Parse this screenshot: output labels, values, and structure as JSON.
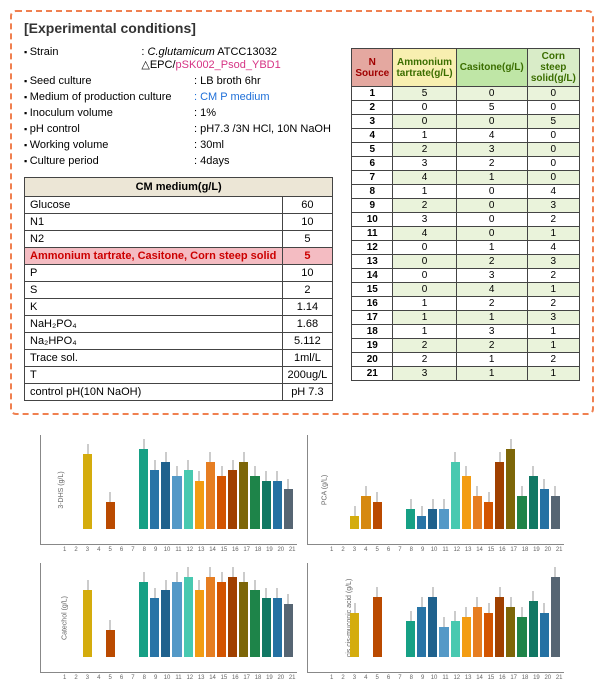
{
  "header_title": "[Experimental conditions]",
  "conditions": [
    {
      "label": "Strain",
      "value_prefix": ": ",
      "italic_part": "C.glutamicum",
      "plain_part": " ATCC13032 △EPC/",
      "pink_part": "pSK002_Psod_YBD1"
    },
    {
      "label": "Seed culture",
      "value": ": LB broth 6hr"
    },
    {
      "label": "Medium of production culture",
      "value": ": CM P medium",
      "value_class": "blue"
    },
    {
      "label": "Inoculum volume",
      "value": ": 1%"
    },
    {
      "label": "pH control",
      "value": ": pH7.3 /3N HCl, 10N NaOH"
    },
    {
      "label": "Working volume",
      "value": ": 30ml"
    },
    {
      "label": "Culture period",
      "value": ": 4days"
    }
  ],
  "cm_table": {
    "header": "CM medium(g/L)",
    "rows": [
      {
        "name": "Glucose",
        "val": "60"
      },
      {
        "name": "N1",
        "val": "10"
      },
      {
        "name": "N2",
        "val": "5"
      },
      {
        "name": "Ammonium tartrate, Casitone, Corn steep solid",
        "val": "5",
        "highlight": true
      },
      {
        "name": "P",
        "val": "10"
      },
      {
        "name": "S",
        "val": "2"
      },
      {
        "name": "K",
        "val": "1.14"
      },
      {
        "name": "NaH₂PO₄",
        "val": "1.68"
      },
      {
        "name": "Na₂HPO₄",
        "val": "5.112"
      },
      {
        "name": "Trace sol.",
        "val": "1ml/L"
      },
      {
        "name": "T",
        "val": "200ug/L"
      },
      {
        "name": "control pH(10N NaOH)",
        "val": "pH 7.3"
      }
    ]
  },
  "nsrc_table": {
    "headers": [
      "N Source",
      "Ammonium tartrate(g/L)",
      "Casitone(g/L)",
      "Corn steep solid(g/L)"
    ],
    "rows": [
      [
        "1",
        "5",
        "0",
        "0"
      ],
      [
        "2",
        "0",
        "5",
        "0"
      ],
      [
        "3",
        "0",
        "0",
        "5"
      ],
      [
        "4",
        "1",
        "4",
        "0"
      ],
      [
        "5",
        "2",
        "3",
        "0"
      ],
      [
        "6",
        "3",
        "2",
        "0"
      ],
      [
        "7",
        "4",
        "1",
        "0"
      ],
      [
        "8",
        "1",
        "0",
        "4"
      ],
      [
        "9",
        "2",
        "0",
        "3"
      ],
      [
        "10",
        "3",
        "0",
        "2"
      ],
      [
        "11",
        "4",
        "0",
        "1"
      ],
      [
        "12",
        "0",
        "1",
        "4"
      ],
      [
        "13",
        "0",
        "2",
        "3"
      ],
      [
        "14",
        "0",
        "3",
        "2"
      ],
      [
        "15",
        "0",
        "4",
        "1"
      ],
      [
        "16",
        "1",
        "2",
        "2"
      ],
      [
        "17",
        "1",
        "1",
        "3"
      ],
      [
        "18",
        "1",
        "3",
        "1"
      ],
      [
        "19",
        "2",
        "2",
        "1"
      ],
      [
        "20",
        "2",
        "1",
        "2"
      ],
      [
        "21",
        "3",
        "1",
        "1"
      ]
    ]
  },
  "bar_colors": [
    "#8e44ad",
    "#5b2c6f",
    "#d4ac0d",
    "#d68910",
    "#ba4a00",
    "#c0392b",
    "#27ae60",
    "#16a085",
    "#2874a6",
    "#1f618d",
    "#5499c7",
    "#48c9b0",
    "#f39c12",
    "#e67e22",
    "#d35400",
    "#a04000",
    "#7d6608",
    "#1e8449",
    "#117864",
    "#2471a3",
    "#566573"
  ],
  "charts": [
    {
      "ylabel": "3-DHS (g/L)",
      "values": [
        0,
        0,
        28,
        0,
        10,
        0,
        0,
        30,
        22,
        25,
        20,
        22,
        18,
        25,
        20,
        22,
        25,
        20,
        18,
        18,
        15
      ]
    },
    {
      "ylabel": "PCA (g/L)",
      "values": [
        0,
        0,
        2,
        5,
        4,
        0,
        0,
        3,
        2,
        3,
        3,
        10,
        8,
        5,
        4,
        10,
        12,
        5,
        8,
        6,
        5
      ]
    },
    {
      "ylabel": "Catechol (g/L)",
      "values": [
        0,
        0,
        25,
        0,
        10,
        0,
        0,
        28,
        22,
        25,
        28,
        30,
        25,
        30,
        28,
        30,
        28,
        25,
        22,
        22,
        20
      ]
    },
    {
      "ylabel": "cis,cis-muconic acid (g/L)",
      "values": [
        0,
        0,
        22,
        0,
        30,
        0,
        0,
        18,
        25,
        30,
        15,
        18,
        20,
        25,
        22,
        30,
        25,
        20,
        28,
        22,
        40
      ]
    }
  ],
  "x_labels": [
    "1",
    "2",
    "3",
    "4",
    "5",
    "6",
    "7",
    "8",
    "9",
    "10",
    "11",
    "12",
    "13",
    "14",
    "15",
    "16",
    "17",
    "18",
    "19",
    "20",
    "21"
  ]
}
